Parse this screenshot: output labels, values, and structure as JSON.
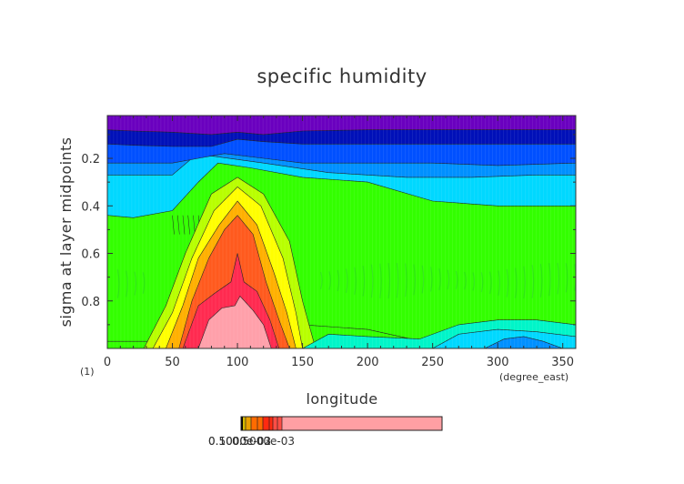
{
  "chart_data": {
    "type": "heatmap",
    "title": "specific humidity",
    "xlabel": "longitude",
    "ylabel": "sigma at layer midpoints",
    "x_units": "(degree_east)",
    "y_units": "(1)",
    "xlim": [
      0,
      360
    ],
    "ylim": [
      1.0,
      0.02
    ],
    "x_ticks": [
      "0",
      "50",
      "100",
      "150",
      "200",
      "250",
      "300",
      "350"
    ],
    "y_ticks": [
      "0.2",
      "0.4",
      "0.6",
      "0.8"
    ],
    "x_tick_values": [
      0,
      50,
      100,
      150,
      200,
      250,
      300,
      350
    ],
    "y_tick_values": [
      0.2,
      0.4,
      0.6,
      0.8
    ],
    "grid": false,
    "colorbar": {
      "position": "bottom",
      "label_text": "0.5000e-03",
      "overlapping_labels": [
        "0.1000e-02",
        "0.5000e-03"
      ],
      "colors": [
        "#000000",
        "#d4b800",
        "#e8a000",
        "#ff6b00",
        "#ff2a10",
        "#ff4e45",
        "#ff9fa3"
      ]
    },
    "palette": {
      "purple": "#6a00bf",
      "dark_blue": "#0010b8",
      "blue": "#0050ff",
      "sky": "#0090ff",
      "cyan": "#00d8ff",
      "teal": "#00f5c8",
      "green_dark": "#2ee614",
      "green": "#33ff00",
      "yellow_green": "#b8ff00",
      "yellow": "#ffff00",
      "orange": "#ffb000",
      "red_orange": "#ff5a1e",
      "red": "#ff2a50",
      "pink": "#ffa0aa"
    },
    "layers": [
      {
        "color": "purple",
        "level": "top band",
        "x": [
          0,
          20,
          50,
          80,
          100,
          120,
          150,
          200,
          250,
          300,
          360
        ],
        "y_bottom": [
          0.08,
          0.085,
          0.09,
          0.1,
          0.09,
          0.1,
          0.085,
          0.08,
          0.08,
          0.08,
          0.08
        ]
      },
      {
        "color": "dark_blue",
        "x": [
          0,
          20,
          50,
          80,
          100,
          120,
          150,
          200,
          250,
          300,
          360
        ],
        "y_bottom": [
          0.14,
          0.145,
          0.15,
          0.15,
          0.12,
          0.13,
          0.14,
          0.14,
          0.14,
          0.14,
          0.14
        ]
      },
      {
        "color": "blue",
        "x": [
          0,
          20,
          50,
          70,
          90,
          120,
          150,
          200,
          250,
          300,
          360
        ],
        "y_bottom": [
          0.22,
          0.22,
          0.22,
          0.2,
          0.18,
          0.2,
          0.22,
          0.22,
          0.22,
          0.23,
          0.22
        ]
      },
      {
        "color": "sky",
        "x": [
          0,
          20,
          50,
          65,
          80,
          120,
          170,
          230,
          280,
          330,
          360
        ],
        "y_bottom": [
          0.27,
          0.27,
          0.27,
          0.2,
          0.19,
          0.22,
          0.26,
          0.28,
          0.28,
          0.27,
          0.27
        ]
      },
      {
        "color": "cyan",
        "x": [
          0,
          20,
          50,
          70,
          85,
          110,
          150,
          200,
          250,
          300,
          360
        ],
        "y_bottom": [
          0.44,
          0.45,
          0.42,
          0.3,
          0.22,
          0.24,
          0.28,
          0.3,
          0.38,
          0.4,
          0.4
        ]
      },
      {
        "color": "green",
        "x": [
          0,
          20,
          50,
          150,
          200,
          250,
          300,
          360
        ],
        "y_bottom": [
          0.97,
          0.97,
          0.97,
          0.9,
          0.92,
          0.98,
          1.0,
          1.0
        ]
      }
    ],
    "core_layers": [
      {
        "color": "yellow_green",
        "x": [
          28,
          45,
          60,
          80,
          100,
          120,
          140,
          150,
          160
        ],
        "y_top": [
          1.0,
          0.82,
          0.6,
          0.35,
          0.28,
          0.35,
          0.55,
          0.8,
          1.0
        ]
      },
      {
        "color": "yellow",
        "x": [
          35,
          50,
          65,
          82,
          100,
          118,
          135,
          145,
          150
        ],
        "y_top": [
          1.0,
          0.85,
          0.62,
          0.42,
          0.32,
          0.4,
          0.62,
          0.85,
          1.0
        ]
      },
      {
        "color": "orange",
        "x": [
          45,
          58,
          70,
          86,
          100,
          115,
          128,
          138,
          145
        ],
        "y_top": [
          1.0,
          0.82,
          0.62,
          0.48,
          0.38,
          0.48,
          0.68,
          0.85,
          1.0
        ]
      },
      {
        "color": "red_orange",
        "x": [
          55,
          65,
          78,
          90,
          100,
          112,
          122,
          132,
          140
        ],
        "y_top": [
          1.0,
          0.8,
          0.62,
          0.5,
          0.44,
          0.52,
          0.72,
          0.88,
          1.0
        ]
      },
      {
        "color": "red",
        "x": [
          58,
          70,
          82,
          95,
          100,
          105,
          115,
          125,
          132
        ],
        "y_top": [
          1.0,
          0.82,
          0.77,
          0.72,
          0.6,
          0.72,
          0.76,
          0.88,
          1.0
        ]
      },
      {
        "color": "pink",
        "x": [
          70,
          78,
          88,
          98,
          102,
          112,
          120,
          126
        ],
        "y_top": [
          1.0,
          0.88,
          0.83,
          0.82,
          0.78,
          0.84,
          0.9,
          1.0
        ]
      }
    ],
    "bottom_right_layers": [
      {
        "color": "teal",
        "x": [
          150,
          170,
          200,
          240,
          270,
          300,
          330,
          360
        ],
        "y_top": [
          1.0,
          0.94,
          0.95,
          0.96,
          0.9,
          0.88,
          0.88,
          0.9
        ]
      },
      {
        "color": "cyan",
        "x": [
          250,
          270,
          300,
          330,
          360
        ],
        "y_top": [
          1.0,
          0.94,
          0.92,
          0.93,
          0.95
        ]
      },
      {
        "color": "sky",
        "x": [
          290,
          305,
          320,
          335,
          350
        ],
        "y_top": [
          1.0,
          0.96,
          0.95,
          0.97,
          1.0
        ]
      }
    ]
  }
}
